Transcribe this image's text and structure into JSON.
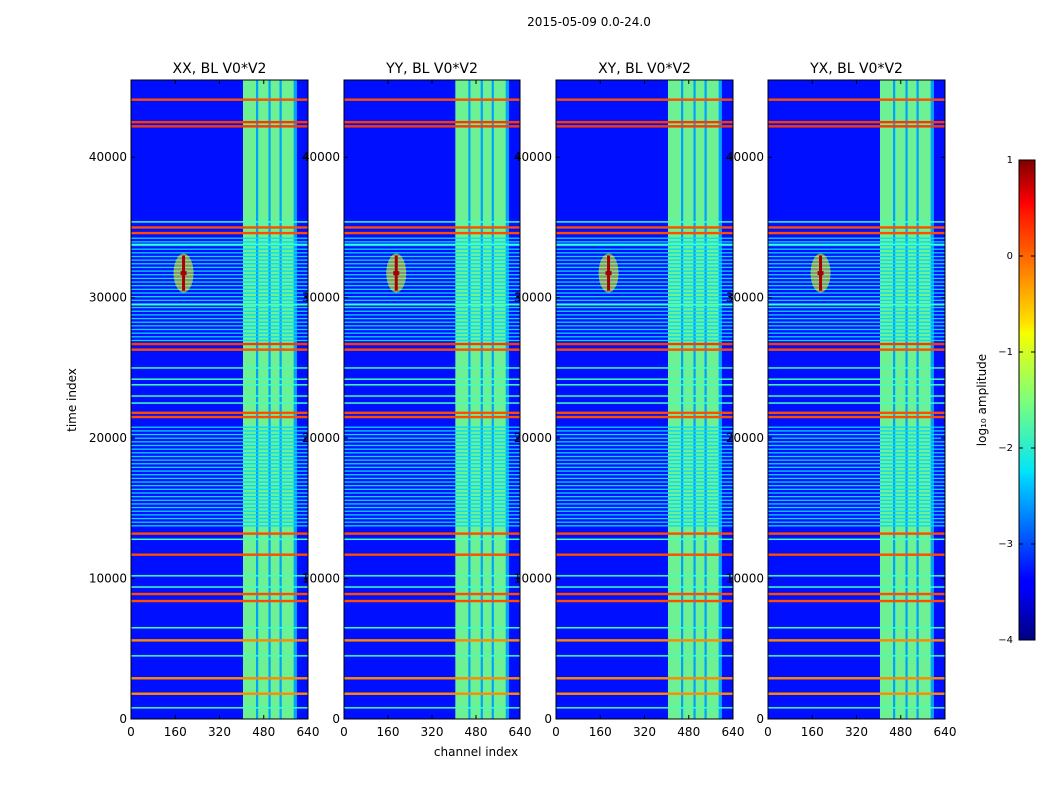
{
  "chart_data": {
    "type": "heatmap",
    "suptitle": "2015-05-09 0.0-24.0",
    "xlabel": "channel index",
    "ylabel": "time index",
    "xlim": [
      0,
      640
    ],
    "ylim": [
      0,
      45500
    ],
    "x_ticks": [
      0,
      160,
      320,
      480,
      640
    ],
    "y_ticks": [
      0,
      10000,
      20000,
      30000,
      40000
    ],
    "colormap": "jet",
    "colorbar": {
      "label": "log₁₀ amplitude",
      "range": [
        -4,
        1
      ],
      "ticks": [
        1,
        0,
        -1,
        -2,
        -3,
        -4
      ],
      "tick_labels": [
        "1",
        "0",
        "−1",
        "−2",
        "−3",
        "−4"
      ]
    },
    "panels": [
      {
        "title": "XX, BL V0*V2",
        "point_source": true
      },
      {
        "title": "YY, BL V0*V2",
        "point_source": true
      },
      {
        "title": "XY, BL V0*V2",
        "point_source": true
      },
      {
        "title": "YX, BL V0*V2",
        "point_source": true
      }
    ],
    "features": {
      "background_log_amplitude": -3.3,
      "rfi_channel_band": {
        "channels": [
          405,
          600
        ],
        "log_amplitude": -1.5
      },
      "rfi_columns": [
        [
          405,
          452
        ],
        [
          460,
          497
        ],
        [
          505,
          537
        ],
        [
          545,
          588
        ]
      ],
      "point_source": {
        "channel": 190,
        "time_range": [
          30500,
          33000
        ],
        "peak_log_amplitude": 0.8
      },
      "flagged_rows_strong": [
        {
          "time": 44100,
          "log_amplitude": 0.0
        },
        {
          "time": 42500,
          "log_amplitude": 0.1
        },
        {
          "time": 42200,
          "log_amplitude": 0.1
        },
        {
          "time": 35000,
          "log_amplitude": 0.0
        },
        {
          "time": 34600,
          "log_amplitude": 0.0
        },
        {
          "time": 26700,
          "log_amplitude": 0.1
        },
        {
          "time": 26300,
          "log_amplitude": 0.0
        },
        {
          "time": 21800,
          "log_amplitude": 0.0
        },
        {
          "time": 21500,
          "log_amplitude": 0.0
        },
        {
          "time": 13200,
          "log_amplitude": 0.0
        },
        {
          "time": 11700,
          "log_amplitude": 0.0
        },
        {
          "time": 8900,
          "log_amplitude": 0.0
        },
        {
          "time": 8400,
          "log_amplitude": 0.0
        },
        {
          "time": 5600,
          "log_amplitude": -0.3
        },
        {
          "time": 2900,
          "log_amplitude": -0.3
        },
        {
          "time": 1800,
          "log_amplitude": -0.3
        }
      ],
      "flagged_rows_medium": [
        35400,
        33800,
        29500,
        25000,
        24200,
        23800,
        23000,
        22500,
        12800,
        10200,
        9400,
        6500,
        4500,
        800
      ],
      "dense_flag_bands": [
        [
          27000,
          34500
        ],
        [
          13800,
          21000
        ]
      ]
    }
  }
}
